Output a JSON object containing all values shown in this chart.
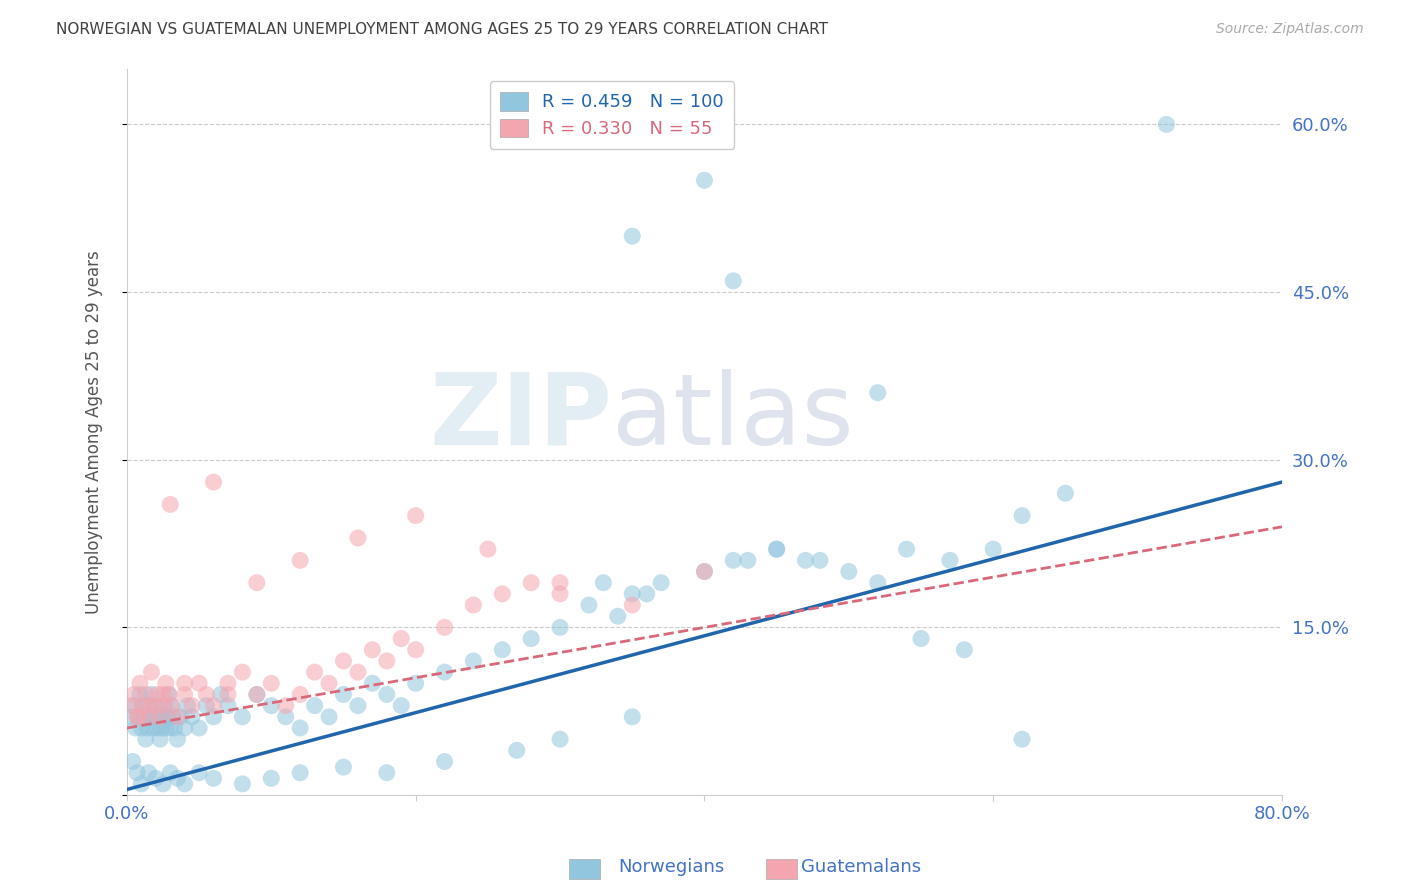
{
  "title": "NORWEGIAN VS GUATEMALAN UNEMPLOYMENT AMONG AGES 25 TO 29 YEARS CORRELATION CHART",
  "source": "Source: ZipAtlas.com",
  "ylabel": "Unemployment Among Ages 25 to 29 years",
  "xlim": [
    0.0,
    80.0
  ],
  "ylim": [
    0.0,
    65.0
  ],
  "yticks": [
    0.0,
    15.0,
    30.0,
    45.0,
    60.0
  ],
  "xticks": [
    0.0,
    20.0,
    40.0,
    60.0,
    80.0
  ],
  "xtick_labels": [
    "0.0%",
    "",
    "",
    "",
    "80.0%"
  ],
  "ytick_labels_right": [
    "",
    "15.0%",
    "30.0%",
    "45.0%",
    "60.0%"
  ],
  "norwegian_color": "#92c5de",
  "guatemalan_color": "#f4a6b0",
  "norwegian_line_color": "#2166ac",
  "guatemalan_line_color": "#d9687a",
  "legend_R_norwegian": "0.459",
  "legend_N_norwegian": "100",
  "legend_R_guatemalan": "0.330",
  "legend_N_guatemalan": "55",
  "watermark_zip": "ZIP",
  "watermark_atlas": "atlas",
  "background_color": "#ffffff",
  "grid_color": "#cccccc",
  "title_color": "#404040",
  "axis_label_color": "#4472c4",
  "norwegian_x": [
    0.3,
    0.5,
    0.6,
    0.8,
    0.9,
    1.0,
    1.1,
    1.2,
    1.3,
    1.4,
    1.5,
    1.6,
    1.7,
    1.8,
    1.9,
    2.0,
    2.1,
    2.2,
    2.3,
    2.4,
    2.5,
    2.6,
    2.7,
    2.8,
    2.9,
    3.0,
    3.1,
    3.2,
    3.3,
    3.5,
    3.7,
    4.0,
    4.2,
    4.5,
    5.0,
    5.5,
    6.0,
    6.5,
    7.0,
    8.0,
    9.0,
    10.0,
    11.0,
    12.0,
    13.0,
    14.0,
    15.0,
    16.0,
    17.0,
    18.0,
    19.0,
    20.0,
    22.0,
    24.0,
    26.0,
    28.0,
    30.0,
    32.0,
    34.0,
    35.0,
    37.0,
    40.0,
    43.0,
    45.0,
    47.0,
    50.0,
    52.0,
    54.0,
    57.0,
    60.0,
    62.0,
    65.0,
    33.0,
    36.0,
    42.0,
    45.0,
    48.0,
    55.0,
    58.0,
    62.0,
    0.4,
    0.7,
    1.0,
    1.5,
    2.0,
    2.5,
    3.0,
    3.5,
    4.0,
    5.0,
    6.0,
    8.0,
    10.0,
    12.0,
    15.0,
    18.0,
    22.0,
    27.0,
    30.0,
    35.0
  ],
  "norwegian_y": [
    7.0,
    8.0,
    6.0,
    7.0,
    9.0,
    6.0,
    8.0,
    7.0,
    5.0,
    6.0,
    8.0,
    7.0,
    9.0,
    6.0,
    7.0,
    8.0,
    6.0,
    7.0,
    5.0,
    6.0,
    7.0,
    8.0,
    6.0,
    7.0,
    9.0,
    6.0,
    8.0,
    7.0,
    6.0,
    5.0,
    7.0,
    6.0,
    8.0,
    7.0,
    6.0,
    8.0,
    7.0,
    9.0,
    8.0,
    7.0,
    9.0,
    8.0,
    7.0,
    6.0,
    8.0,
    7.0,
    9.0,
    8.0,
    10.0,
    9.0,
    8.0,
    10.0,
    11.0,
    12.0,
    13.0,
    14.0,
    15.0,
    17.0,
    16.0,
    18.0,
    19.0,
    20.0,
    21.0,
    22.0,
    21.0,
    20.0,
    19.0,
    22.0,
    21.0,
    22.0,
    25.0,
    27.0,
    19.0,
    18.0,
    21.0,
    22.0,
    21.0,
    14.0,
    13.0,
    5.0,
    3.0,
    2.0,
    1.0,
    2.0,
    1.5,
    1.0,
    2.0,
    1.5,
    1.0,
    2.0,
    1.5,
    1.0,
    1.5,
    2.0,
    2.5,
    2.0,
    3.0,
    4.0,
    5.0,
    7.0
  ],
  "norwegian_outlier_x": [
    35.0,
    40.0,
    42.0,
    52.0,
    72.0
  ],
  "norwegian_outlier_y": [
    50.0,
    55.0,
    46.0,
    36.0,
    60.0
  ],
  "guatemalan_x": [
    0.3,
    0.5,
    0.7,
    0.9,
    1.1,
    1.3,
    1.5,
    1.7,
    1.9,
    2.1,
    2.3,
    2.5,
    2.7,
    2.9,
    3.1,
    3.5,
    4.0,
    4.5,
    5.0,
    5.5,
    6.0,
    7.0,
    8.0,
    9.0,
    10.0,
    11.0,
    12.0,
    13.0,
    14.0,
    15.0,
    16.0,
    17.0,
    18.0,
    19.0,
    20.0,
    22.0,
    24.0,
    26.0,
    28.0,
    30.0,
    3.0,
    6.0,
    9.0,
    12.0,
    16.0,
    20.0,
    25.0,
    30.0,
    35.0,
    40.0,
    0.8,
    1.5,
    2.5,
    4.0,
    7.0
  ],
  "guatemalan_y": [
    8.0,
    9.0,
    7.0,
    10.0,
    8.0,
    9.0,
    7.0,
    11.0,
    8.0,
    9.0,
    7.0,
    8.0,
    10.0,
    9.0,
    8.0,
    7.0,
    9.0,
    8.0,
    10.0,
    9.0,
    8.0,
    10.0,
    11.0,
    9.0,
    10.0,
    8.0,
    9.0,
    11.0,
    10.0,
    12.0,
    11.0,
    13.0,
    12.0,
    14.0,
    13.0,
    15.0,
    17.0,
    18.0,
    19.0,
    18.0,
    26.0,
    28.0,
    19.0,
    21.0,
    23.0,
    25.0,
    22.0,
    19.0,
    17.0,
    20.0,
    7.0,
    8.0,
    9.0,
    10.0,
    9.0
  ],
  "nor_trend_x0": 0.0,
  "nor_trend_y0": 0.5,
  "nor_trend_x1": 80.0,
  "nor_trend_y1": 28.0,
  "gua_trend_x0": 0.0,
  "gua_trend_y0": 6.0,
  "gua_trend_x1": 80.0,
  "gua_trend_y1": 24.0
}
